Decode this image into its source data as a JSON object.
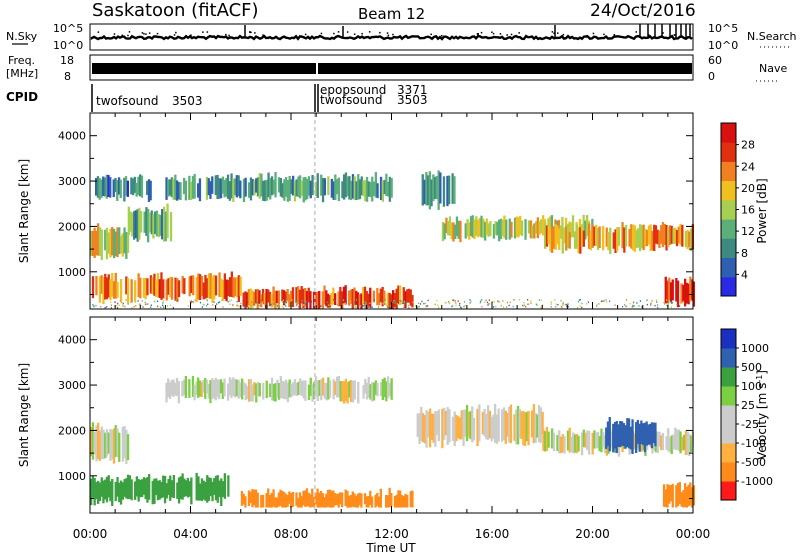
{
  "header": {
    "station": "Saskatoon (fitACF)",
    "beam": "Beam 12",
    "date": "24/Oct/2016"
  },
  "noise_panel": {
    "left_label": "N.Sky",
    "right_label": "N.Search",
    "left_ticks": [
      "10^5",
      "10^0"
    ],
    "right_ticks": [
      "10^5",
      "10^0"
    ]
  },
  "freq_panel": {
    "left_label_1": "Freq.",
    "left_label_2": "[MHz]",
    "left_ticks": [
      "18",
      "8"
    ],
    "right_label": "Nave",
    "right_ticks": [
      "60",
      "0"
    ]
  },
  "cpid_panel": {
    "label": "CPID",
    "entries": [
      {
        "name": "twofsound",
        "id": "3503",
        "hour": 0.0,
        "row": 2
      },
      {
        "name": "epopsound",
        "id": "3371",
        "hour": 8.95,
        "row": 0
      },
      {
        "name": "twofsound",
        "id": "3503",
        "hour": 8.95,
        "row": 1
      }
    ]
  },
  "power_panel": {
    "ylabel": "Slant Range [km]",
    "yticks": [
      "4000",
      "3000",
      "2000",
      "1000"
    ],
    "colorbar_label": "Power [dB]",
    "colorbar_ticks": [
      "28",
      "24",
      "20",
      "16",
      "12",
      "8",
      "4"
    ]
  },
  "velocity_panel": {
    "ylabel": "Slant Range [km]",
    "yticks": [
      "4000",
      "3000",
      "2000",
      "1000"
    ],
    "colorbar_label": "Velocity [m s",
    "colorbar_unit_exp": "-1",
    "colorbar_unit_close": "]",
    "colorbar_ticks": [
      "1000",
      "500",
      "100",
      "25",
      "-25",
      "-100",
      "-500",
      "-1000"
    ]
  },
  "xaxis": {
    "label": "Time UT",
    "ticks": [
      "00:00",
      "04:00",
      "08:00",
      "12:00",
      "16:00",
      "20:00",
      "00:00"
    ]
  },
  "colors": {
    "power_scale": [
      "#2a2ae6",
      "#2f5fb0",
      "#3f8a80",
      "#5bb07a",
      "#a8d050",
      "#f0c020",
      "#f08020",
      "#e03010",
      "#d81010"
    ],
    "velocity_scale": [
      "#ff1a1a",
      "#ff8c1a",
      "#ffb040",
      "#cccccc",
      "#cccccc",
      "#7ad040",
      "#3aa040",
      "#3060b0",
      "#1a30c0"
    ]
  },
  "chart_data": {
    "type": "heatmap",
    "x_range_hours": [
      0,
      24
    ],
    "y_range_km": [
      180,
      4500
    ],
    "xlabel": "Time UT",
    "ylabel": "Slant Range [km]",
    "power_range_db": [
      0,
      30
    ],
    "velocity_range_ms": [
      -1000,
      1000
    ],
    "power_bands": [
      {
        "start_h": 0.0,
        "end_h": 1.5,
        "center_km": 1650,
        "halfwidth_km": 330,
        "power_db": 17
      },
      {
        "start_h": 1.5,
        "end_h": 3.2,
        "center_km": 2050,
        "halfwidth_km": 350,
        "power_db": 11
      },
      {
        "start_h": 0.2,
        "end_h": 2.4,
        "center_km": 2850,
        "halfwidth_km": 250,
        "power_db": 7
      },
      {
        "start_h": 3.0,
        "end_h": 12.0,
        "center_km": 2850,
        "halfwidth_km": 260,
        "power_db": 10
      },
      {
        "start_h": 0.0,
        "end_h": 6.0,
        "center_km": 650,
        "halfwidth_km": 280,
        "power_db": 22
      },
      {
        "start_h": 6.0,
        "end_h": 12.8,
        "center_km": 420,
        "halfwidth_km": 210,
        "power_db": 24
      },
      {
        "start_h": 13.2,
        "end_h": 14.5,
        "center_km": 2800,
        "halfwidth_km": 400,
        "power_db": 8
      },
      {
        "start_h": 14.0,
        "end_h": 20.0,
        "center_km": 1950,
        "halfwidth_km": 230,
        "power_db": 16
      },
      {
        "start_h": 18.0,
        "end_h": 24.0,
        "center_km": 1750,
        "halfwidth_km": 270,
        "power_db": 20
      },
      {
        "start_h": 22.8,
        "end_h": 24.0,
        "center_km": 550,
        "halfwidth_km": 280,
        "power_db": 27
      }
    ],
    "velocity_bands": [
      {
        "start_h": 0.0,
        "end_h": 1.5,
        "center_km": 1700,
        "halfwidth_km": 380,
        "velocity_ms": 0
      },
      {
        "start_h": 3.0,
        "end_h": 12.0,
        "center_km": 2900,
        "halfwidth_km": 230,
        "velocity_ms": 10
      },
      {
        "start_h": 0.0,
        "end_h": 5.5,
        "center_km": 700,
        "halfwidth_km": 280,
        "velocity_ms": 150
      },
      {
        "start_h": 6.0,
        "end_h": 12.8,
        "center_km": 450,
        "halfwidth_km": 200,
        "velocity_ms": -150
      },
      {
        "start_h": 13.0,
        "end_h": 18.0,
        "center_km": 2100,
        "halfwidth_km": 400,
        "velocity_ms": -10
      },
      {
        "start_h": 18.0,
        "end_h": 24.0,
        "center_km": 1750,
        "halfwidth_km": 250,
        "velocity_ms": 0
      },
      {
        "start_h": 20.5,
        "end_h": 22.5,
        "center_km": 1900,
        "halfwidth_km": 350,
        "velocity_ms": 600
      },
      {
        "start_h": 22.8,
        "end_h": 24.0,
        "center_km": 550,
        "halfwidth_km": 250,
        "velocity_ms": -150
      }
    ]
  }
}
